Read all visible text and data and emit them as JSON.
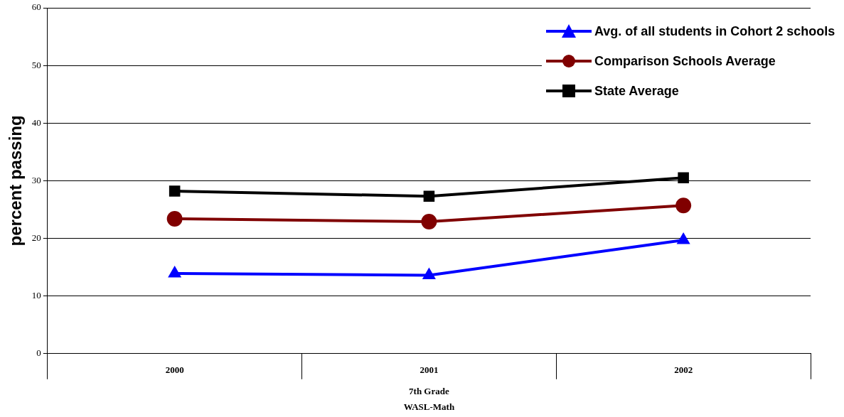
{
  "chart_data": {
    "type": "line",
    "ylabel": "percent passing",
    "xlabel": "7th Grade",
    "annotations": [
      "WASL-Math"
    ],
    "categories": [
      "2000",
      "2001",
      "2002"
    ],
    "series": [
      {
        "name": "Avg. of all students in Cohort 2 schools",
        "color": "#0000ff",
        "marker": "triangle",
        "values": [
          13.9,
          13.6,
          19.7
        ]
      },
      {
        "name": "Comparison Schools Average",
        "color": "#800000",
        "marker": "circle",
        "values": [
          23.4,
          22.9,
          25.7
        ]
      },
      {
        "name": "State Average",
        "color": "#000000",
        "marker": "square",
        "values": [
          28.2,
          27.3,
          30.5
        ]
      }
    ],
    "ylim": [
      0,
      60
    ],
    "yticks": [
      0,
      10,
      20,
      30,
      40,
      50,
      60
    ],
    "grid": "y",
    "legend": "top right",
    "line_style": "solid"
  }
}
